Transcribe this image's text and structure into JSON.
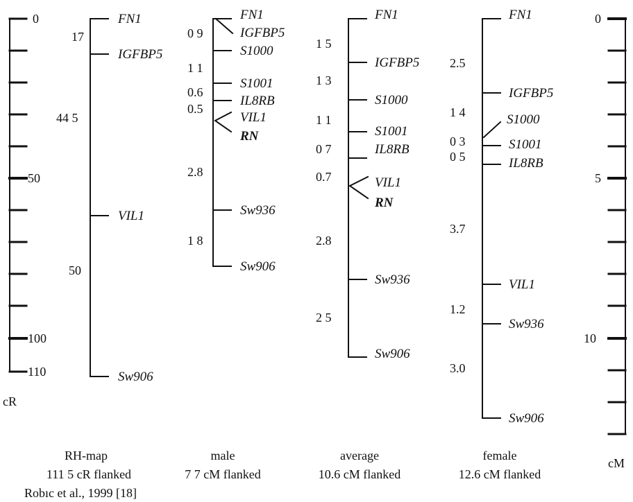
{
  "left_scale": {
    "unit": "cR",
    "labels": [
      "0",
      "50",
      "100",
      "110"
    ]
  },
  "right_scale": {
    "unit": "cM",
    "labels": [
      "0",
      "5",
      "10"
    ]
  },
  "maps": [
    {
      "id": "rh",
      "caption": [
        "RH-map",
        "111 5 cR flanked",
        "Robıc et al., 1999 [18]"
      ],
      "genes": [
        "FN1",
        "IGFBP5",
        "VIL1",
        "Sw906"
      ],
      "distances": [
        "17",
        "44 5",
        "50"
      ]
    },
    {
      "id": "male",
      "caption": [
        "male",
        "7 7 cM flanked"
      ],
      "genes": [
        "FN1",
        "IGFBP5",
        "S1000",
        "S1001",
        "IL8RB",
        "VIL1",
        "RN",
        "Sw936",
        "Sw906"
      ],
      "distances": [
        "0 9",
        "1 1",
        "0.6",
        "0.5",
        "2.8",
        "1 8"
      ]
    },
    {
      "id": "average",
      "caption": [
        "average",
        "10.6 cM flanked"
      ],
      "genes": [
        "FN1",
        "IGFBP5",
        "S1000",
        "S1001",
        "IL8RB",
        "VIL1",
        "RN",
        "Sw936",
        "Sw906"
      ],
      "distances": [
        "1 5",
        "1 3",
        "1 1",
        "0 7",
        "0.7",
        "2.8",
        "2 5"
      ]
    },
    {
      "id": "female",
      "caption": [
        "female",
        "12.6 cM flanked"
      ],
      "genes": [
        "FN1",
        "IGFBP5",
        "S1000",
        "S1001",
        "IL8RB",
        "VIL1",
        "Sw936",
        "Sw906"
      ],
      "distances": [
        "2.5",
        "1 4",
        "0 3",
        "0 5",
        "3.7",
        "1.2",
        "3.0"
      ]
    }
  ]
}
